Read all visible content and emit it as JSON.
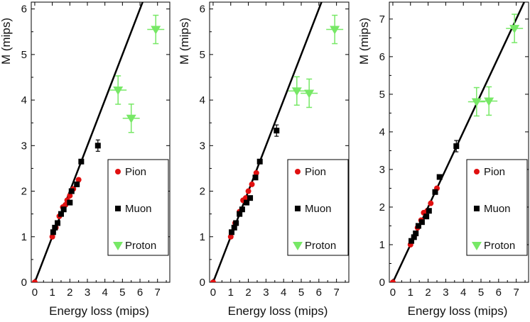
{
  "colors": {
    "pion": "#e01010",
    "muon": "#000000",
    "proton": "#77e866",
    "fit_line": "#000000",
    "frame": "#000000",
    "background": "#ffffff"
  },
  "chart_data": [
    {
      "type": "scatter",
      "xlabel": "Energy loss (mips)",
      "ylabel": "M (mips)",
      "xlim": [
        -0.2,
        7.7
      ],
      "ylim": [
        0,
        6.15
      ],
      "xticks": [
        "0",
        "1",
        "2",
        "3",
        "4",
        "5",
        "6",
        "7"
      ],
      "yticks": [
        "0",
        "1",
        "2",
        "3",
        "4",
        "5",
        "6"
      ],
      "legend_position": "bottom-right",
      "fit_line": {
        "slope": 1.0,
        "intercept": 0.0
      },
      "series": [
        {
          "name": "Pion",
          "marker": "circle",
          "x": [
            0.0,
            1.0,
            1.2,
            1.4,
            1.6,
            1.75,
            1.85,
            2.0,
            2.2,
            2.5
          ],
          "y": [
            0.0,
            1.0,
            1.2,
            1.45,
            1.65,
            1.7,
            1.8,
            1.9,
            2.05,
            2.25
          ]
        },
        {
          "name": "Muon",
          "marker": "square",
          "x": [
            1.05,
            1.15,
            1.3,
            1.5,
            1.65,
            2.0,
            2.1,
            2.4,
            2.65,
            3.6
          ],
          "y": [
            1.1,
            1.2,
            1.3,
            1.5,
            1.6,
            1.75,
            2.0,
            2.15,
            2.65,
            3.0
          ]
        },
        {
          "name": "Proton",
          "marker": "triangle-down",
          "x": [
            4.75,
            5.5,
            6.9
          ],
          "y": [
            4.22,
            3.6,
            5.55
          ]
        }
      ]
    },
    {
      "type": "scatter",
      "xlabel": "Energy loss (mips)",
      "ylabel": "M (mips)",
      "xlim": [
        -0.2,
        7.7
      ],
      "ylim": [
        0,
        6.15
      ],
      "xticks": [
        "0",
        "1",
        "2",
        "3",
        "4",
        "5",
        "6",
        "7"
      ],
      "yticks": [
        "0",
        "1",
        "2",
        "3",
        "4",
        "5",
        "6"
      ],
      "legend_position": "bottom-right",
      "fit_line": {
        "slope": 1.0,
        "intercept": 0.0
      },
      "series": [
        {
          "name": "Pion",
          "marker": "circle",
          "x": [
            0.0,
            1.0,
            1.25,
            1.5,
            1.7,
            1.85,
            2.0,
            2.2,
            2.45
          ],
          "y": [
            0.0,
            1.0,
            1.3,
            1.55,
            1.8,
            1.85,
            2.0,
            2.15,
            2.4
          ]
        },
        {
          "name": "Muon",
          "marker": "square",
          "x": [
            1.05,
            1.2,
            1.3,
            1.5,
            1.65,
            1.9,
            2.1,
            2.4,
            2.65,
            3.6
          ],
          "y": [
            1.1,
            1.2,
            1.3,
            1.5,
            1.6,
            1.75,
            1.85,
            2.3,
            2.65,
            3.33
          ]
        },
        {
          "name": "Proton",
          "marker": "triangle-down",
          "x": [
            4.75,
            5.45,
            6.9
          ],
          "y": [
            4.2,
            4.15,
            5.55
          ]
        }
      ]
    },
    {
      "type": "scatter",
      "xlabel": "Energy loss (mips)",
      "ylabel": "M (mips)",
      "xlim": [
        -0.2,
        7.7
      ],
      "ylim": [
        0,
        7.45
      ],
      "xticks": [
        "0",
        "1",
        "2",
        "3",
        "4",
        "5",
        "6",
        "7"
      ],
      "yticks": [
        "0",
        "1",
        "2",
        "3",
        "4",
        "5",
        "6",
        "7"
      ],
      "legend_position": "bottom-right",
      "fit_line": {
        "slope": 1.0,
        "intercept": 0.0
      },
      "series": [
        {
          "name": "Pion",
          "marker": "circle",
          "x": [
            0.0,
            1.0,
            1.2,
            1.4,
            1.6,
            1.75,
            1.95,
            2.15,
            2.5
          ],
          "y": [
            0.0,
            1.0,
            1.2,
            1.45,
            1.65,
            1.85,
            1.9,
            2.1,
            2.5
          ]
        },
        {
          "name": "Muon",
          "marker": "square",
          "x": [
            1.05,
            1.2,
            1.3,
            1.45,
            1.65,
            1.9,
            2.05,
            2.4,
            2.65,
            3.6
          ],
          "y": [
            1.1,
            1.2,
            1.3,
            1.5,
            1.6,
            1.75,
            1.9,
            2.4,
            2.8,
            3.62
          ]
        },
        {
          "name": "Proton",
          "marker": "triangle-down",
          "x": [
            4.75,
            5.45,
            6.9
          ],
          "y": [
            4.8,
            4.82,
            6.75
          ]
        }
      ]
    }
  ]
}
